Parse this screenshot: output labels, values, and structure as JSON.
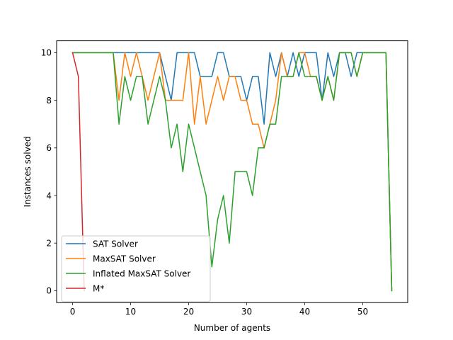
{
  "chart_data": {
    "type": "line",
    "title": "",
    "xlabel": "Number of agents",
    "ylabel": "Instances solved",
    "xlim": [
      -2.75,
      57.75
    ],
    "ylim": [
      -0.5,
      10.5
    ],
    "xticks": [
      0,
      10,
      20,
      30,
      40,
      50
    ],
    "yticks": [
      0,
      2,
      4,
      6,
      8,
      10
    ],
    "grid": false,
    "legend_position": "lower-left",
    "series": [
      {
        "name": "SAT Solver",
        "color": "#1f77b4",
        "x": [
          0,
          1,
          2,
          3,
          4,
          5,
          6,
          7,
          8,
          9,
          10,
          11,
          12,
          13,
          14,
          15,
          16,
          17,
          18,
          19,
          20,
          21,
          22,
          23,
          24,
          25,
          26,
          27,
          28,
          29,
          30,
          31,
          32,
          33,
          34,
          35,
          36,
          37,
          38,
          39,
          40,
          41,
          42,
          43,
          44,
          45,
          46,
          47,
          48,
          49,
          50,
          51,
          52,
          53,
          54,
          55
        ],
        "y": [
          10,
          10,
          10,
          10,
          10,
          10,
          10,
          10,
          10,
          10,
          10,
          10,
          10,
          10,
          10,
          10,
          9,
          8,
          10,
          10,
          10,
          10,
          9,
          9,
          9,
          10,
          10,
          9,
          9,
          9,
          8,
          9,
          9,
          7,
          10,
          9,
          10,
          9,
          10,
          9,
          10,
          10,
          10,
          8,
          10,
          9,
          10,
          10,
          9,
          10,
          10,
          10,
          10,
          10,
          10,
          0
        ]
      },
      {
        "name": "MaxSAT Solver",
        "color": "#ff7f0e",
        "x": [
          0,
          1,
          2,
          3,
          4,
          5,
          6,
          7,
          8,
          9,
          10,
          11,
          12,
          13,
          14,
          15,
          16,
          17,
          18,
          19,
          20,
          21,
          22,
          23,
          24,
          25,
          26,
          27,
          28,
          29,
          30,
          31,
          32,
          33,
          34,
          35,
          36,
          37,
          38,
          39,
          40,
          41,
          42,
          43,
          44,
          45,
          46,
          47,
          48,
          49,
          50,
          51,
          52,
          53,
          54,
          55
        ],
        "y": [
          10,
          10,
          10,
          10,
          10,
          10,
          10,
          10,
          8,
          10,
          9,
          10,
          9,
          8,
          9,
          10,
          8,
          8,
          8,
          8,
          10,
          7,
          9,
          7,
          8,
          9,
          8,
          9,
          9,
          8,
          8,
          7,
          7,
          6,
          7,
          8,
          10,
          9,
          9,
          10,
          10,
          9,
          9,
          8,
          9,
          8,
          10,
          10,
          10,
          9,
          10,
          10,
          10,
          10,
          10,
          0
        ]
      },
      {
        "name": "Inflated MaxSAT Solver",
        "color": "#2ca02c",
        "x": [
          0,
          1,
          2,
          3,
          4,
          5,
          6,
          7,
          8,
          9,
          10,
          11,
          12,
          13,
          14,
          15,
          16,
          17,
          18,
          19,
          20,
          21,
          22,
          23,
          24,
          25,
          26,
          27,
          28,
          29,
          30,
          31,
          32,
          33,
          34,
          35,
          36,
          37,
          38,
          39,
          40,
          41,
          42,
          43,
          44,
          45,
          46,
          47,
          48,
          49,
          50,
          51,
          52,
          53,
          54,
          55
        ],
        "y": [
          10,
          10,
          10,
          10,
          10,
          10,
          10,
          10,
          7,
          9,
          8,
          9,
          9,
          7,
          8,
          9,
          8,
          6,
          7,
          5,
          7,
          6,
          5,
          4,
          1,
          3,
          4,
          2,
          5,
          5,
          5,
          4,
          6,
          6,
          7,
          7,
          9,
          9,
          9,
          10,
          9,
          9,
          9,
          8,
          9,
          8,
          10,
          10,
          10,
          9,
          10,
          10,
          10,
          10,
          10,
          0
        ]
      },
      {
        "name": "M*",
        "color": "#d62728",
        "x": [
          0,
          1,
          2
        ],
        "y": [
          10,
          9,
          0
        ]
      }
    ]
  }
}
